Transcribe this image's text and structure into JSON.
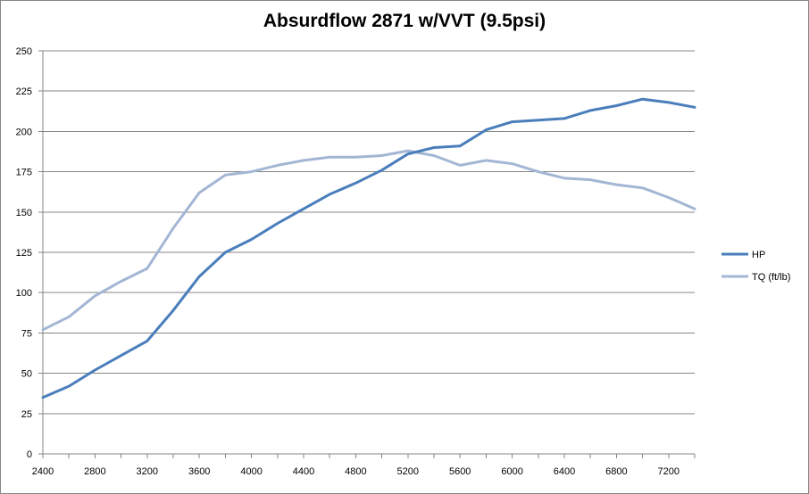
{
  "chart_data": {
    "type": "line",
    "title": "Absurdflow 2871 w/VVT (9.5psi)",
    "xlabel": "",
    "ylabel": "",
    "ylim": [
      0,
      250
    ],
    "yticks": [
      0,
      25,
      50,
      75,
      100,
      125,
      150,
      175,
      200,
      225,
      250
    ],
    "x": [
      2400,
      2600,
      2800,
      3000,
      3200,
      3400,
      3600,
      3800,
      4000,
      4200,
      4400,
      4600,
      4800,
      5000,
      5200,
      5400,
      5600,
      5800,
      6000,
      6200,
      6400,
      6600,
      6800,
      7000,
      7200,
      7400
    ],
    "xtick_labels": [
      "2400",
      "2800",
      "3200",
      "3600",
      "4000",
      "4400",
      "4800",
      "5200",
      "5600",
      "6000",
      "6400",
      "6800",
      "7200"
    ],
    "grid": true,
    "legend_position": "right",
    "series": [
      {
        "name": "HP",
        "color": "#4a7ebb",
        "values": [
          35,
          42,
          52,
          61,
          70,
          89,
          110,
          125,
          133,
          143,
          152,
          161,
          168,
          176,
          186,
          190,
          191,
          201,
          206,
          207,
          208,
          213,
          216,
          220,
          218,
          215
        ]
      },
      {
        "name": "TQ (ft/lb)",
        "color": "#a3b6d4",
        "values": [
          77,
          85,
          98,
          107,
          115,
          140,
          162,
          173,
          175,
          179,
          182,
          184,
          184,
          185,
          188,
          185,
          179,
          182,
          180,
          175,
          171,
          170,
          167,
          165,
          159,
          152
        ]
      }
    ]
  }
}
